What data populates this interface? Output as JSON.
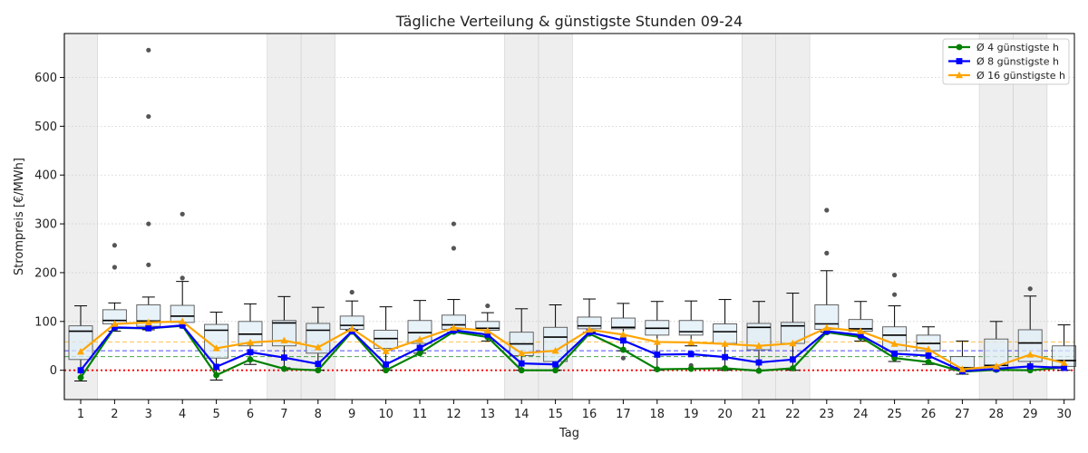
{
  "chart_data": {
    "type": "box",
    "title": "Tägliche Verteilung & günstigste Stunden 09-24",
    "xlabel": "Tag",
    "ylabel": "Strompreis [€/MWh]",
    "ylim": [
      -60,
      690
    ],
    "yticks": [
      0,
      100,
      200,
      300,
      400,
      500,
      600
    ],
    "grid": "y, dotted",
    "legend_position": "top-right",
    "categories": [
      "1",
      "2",
      "3",
      "4",
      "5",
      "6",
      "7",
      "8",
      "9",
      "10",
      "11",
      "12",
      "13",
      "14",
      "15",
      "16",
      "17",
      "18",
      "19",
      "20",
      "21",
      "22",
      "23",
      "24",
      "25",
      "26",
      "27",
      "28",
      "29",
      "30"
    ],
    "weekend_days": [
      1,
      7,
      8,
      14,
      15,
      21,
      22,
      28,
      29
    ],
    "boxes": [
      {
        "day": 1,
        "wlo": -22,
        "q1": 22,
        "med": 80,
        "q3": 91,
        "whi": 132,
        "fliers": []
      },
      {
        "day": 2,
        "wlo": 80,
        "q1": 95,
        "med": 102,
        "q3": 124,
        "whi": 138,
        "fliers": [
          211,
          256
        ]
      },
      {
        "day": 3,
        "wlo": 83,
        "q1": 90,
        "med": 101,
        "q3": 134,
        "whi": 150,
        "fliers": [
          216,
          300,
          520,
          656
        ]
      },
      {
        "day": 4,
        "wlo": 92,
        "q1": 98,
        "med": 111,
        "q3": 133,
        "whi": 182,
        "fliers": [
          189,
          320
        ]
      },
      {
        "day": 5,
        "wlo": -20,
        "q1": 25,
        "med": 82,
        "q3": 94,
        "whi": 119,
        "fliers": []
      },
      {
        "day": 6,
        "wlo": 12,
        "q1": 50,
        "med": 74,
        "q3": 100,
        "whi": 136,
        "fliers": []
      },
      {
        "day": 7,
        "wlo": 5,
        "q1": 50,
        "med": 97,
        "q3": 102,
        "whi": 151,
        "fliers": []
      },
      {
        "day": 8,
        "wlo": 0,
        "q1": 35,
        "med": 82,
        "q3": 96,
        "whi": 129,
        "fliers": []
      },
      {
        "day": 9,
        "wlo": 82,
        "q1": 84,
        "med": 92,
        "q3": 111,
        "whi": 142,
        "fliers": [
          160
        ]
      },
      {
        "day": 10,
        "wlo": 0,
        "q1": 45,
        "med": 65,
        "q3": 82,
        "whi": 130,
        "fliers": []
      },
      {
        "day": 11,
        "wlo": 35,
        "q1": 55,
        "med": 77,
        "q3": 102,
        "whi": 143,
        "fliers": []
      },
      {
        "day": 12,
        "wlo": 78,
        "q1": 84,
        "med": 93,
        "q3": 113,
        "whi": 145,
        "fliers": [
          250,
          300
        ]
      },
      {
        "day": 13,
        "wlo": 60,
        "q1": 82,
        "med": 86,
        "q3": 100,
        "whi": 118,
        "fliers": [
          132
        ]
      },
      {
        "day": 14,
        "wlo": 0,
        "q1": 30,
        "med": 54,
        "q3": 78,
        "whi": 126,
        "fliers": []
      },
      {
        "day": 15,
        "wlo": 0,
        "q1": 18,
        "med": 68,
        "q3": 88,
        "whi": 134,
        "fliers": []
      },
      {
        "day": 16,
        "wlo": 78,
        "q1": 85,
        "med": 91,
        "q3": 109,
        "whi": 146,
        "fliers": []
      },
      {
        "day": 17,
        "wlo": 40,
        "q1": 85,
        "med": 88,
        "q3": 107,
        "whi": 137,
        "fliers": [
          25
        ]
      },
      {
        "day": 18,
        "wlo": 0,
        "q1": 72,
        "med": 86,
        "q3": 102,
        "whi": 141,
        "fliers": []
      },
      {
        "day": 19,
        "wlo": 50,
        "q1": 72,
        "med": 79,
        "q3": 102,
        "whi": 142,
        "fliers": [
          10
        ]
      },
      {
        "day": 20,
        "wlo": 0,
        "q1": 55,
        "med": 79,
        "q3": 95,
        "whi": 145,
        "fliers": []
      },
      {
        "day": 21,
        "wlo": 0,
        "q1": 42,
        "med": 88,
        "q3": 96,
        "whi": 141,
        "fliers": []
      },
      {
        "day": 22,
        "wlo": 0,
        "q1": 55,
        "med": 91,
        "q3": 98,
        "whi": 158,
        "fliers": []
      },
      {
        "day": 23,
        "wlo": 78,
        "q1": 84,
        "med": 95,
        "q3": 134,
        "whi": 204,
        "fliers": [
          240,
          328
        ]
      },
      {
        "day": 24,
        "wlo": 60,
        "q1": 80,
        "med": 85,
        "q3": 104,
        "whi": 141,
        "fliers": []
      },
      {
        "day": 25,
        "wlo": 18,
        "q1": 40,
        "med": 72,
        "q3": 89,
        "whi": 132,
        "fliers": [
          155,
          195
        ]
      },
      {
        "day": 26,
        "wlo": 12,
        "q1": 40,
        "med": 55,
        "q3": 72,
        "whi": 89,
        "fliers": []
      },
      {
        "day": 27,
        "wlo": -8,
        "q1": 0,
        "med": 5,
        "q3": 28,
        "whi": 60,
        "fliers": []
      },
      {
        "day": 28,
        "wlo": 0,
        "q1": 2,
        "med": 10,
        "q3": 64,
        "whi": 100,
        "fliers": []
      },
      {
        "day": 29,
        "wlo": 0,
        "q1": 18,
        "med": 56,
        "q3": 83,
        "whi": 152,
        "fliers": [
          167
        ]
      },
      {
        "day": 30,
        "wlo": 0,
        "q1": 8,
        "med": 20,
        "q3": 50,
        "whi": 93,
        "fliers": []
      }
    ],
    "series": [
      {
        "name": "Ø 4 günstigste h",
        "color": "#008000",
        "marker": "circle",
        "values": [
          -15,
          87,
          86,
          91,
          -10,
          22,
          3,
          0,
          79,
          0,
          35,
          79,
          68,
          0,
          0,
          75,
          42,
          2,
          3,
          4,
          -1,
          4,
          78,
          68,
          25,
          17,
          -3,
          1,
          0,
          6
        ]
      },
      {
        "name": "Ø 8 günstigste h",
        "color": "#0000ff",
        "marker": "square",
        "values": [
          0,
          88,
          86,
          92,
          7,
          37,
          26,
          13,
          80,
          12,
          46,
          82,
          73,
          14,
          12,
          78,
          61,
          32,
          33,
          27,
          16,
          22,
          80,
          72,
          34,
          30,
          -2,
          3,
          8,
          5
        ]
      },
      {
        "name": "Ø 16 günstigste h",
        "color": "#ffa500",
        "marker": "triangle",
        "values": [
          38,
          95,
          98,
          100,
          45,
          57,
          61,
          47,
          85,
          39,
          63,
          87,
          81,
          35,
          40,
          83,
          73,
          58,
          57,
          54,
          50,
          55,
          87,
          80,
          54,
          43,
          2,
          8,
          32,
          15
        ]
      }
    ],
    "reference_lines": [
      {
        "y": 0,
        "color": "#ff0000",
        "style": "dotted"
      },
      {
        "y": 28,
        "color": "#008000",
        "style": "dashed"
      },
      {
        "y": 40,
        "color": "#0000ff",
        "style": "dashed"
      },
      {
        "y": 58,
        "color": "#ffa500",
        "style": "dashed"
      }
    ]
  }
}
